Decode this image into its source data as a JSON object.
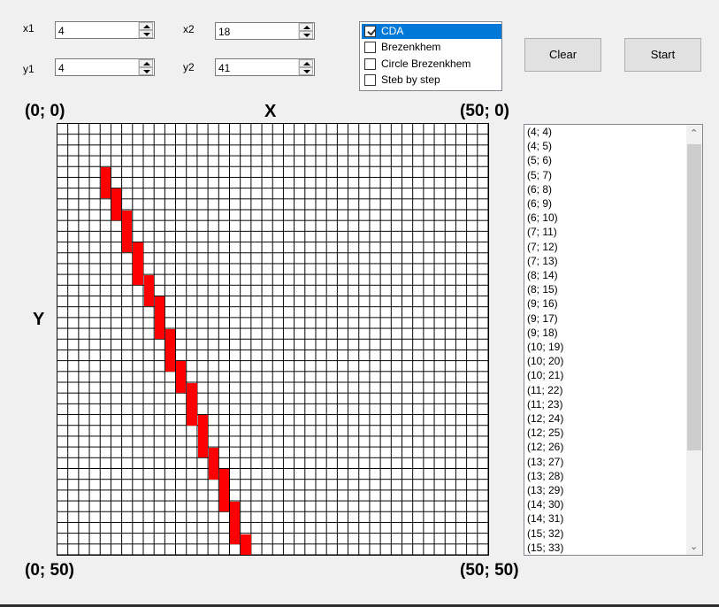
{
  "inputs": {
    "x1": {
      "label": "x1",
      "value": "4"
    },
    "y1": {
      "label": "y1",
      "value": "4"
    },
    "x2": {
      "label": "x2",
      "value": "18"
    },
    "y2": {
      "label": "y2",
      "value": "41"
    }
  },
  "algorithms": [
    {
      "label": "CDA",
      "checked": true,
      "selected": true
    },
    {
      "label": "Brezenkhem",
      "checked": false,
      "selected": false
    },
    {
      "label": "Circle Brezenkhem",
      "checked": false,
      "selected": false
    },
    {
      "label": "Steb by step",
      "checked": false,
      "selected": false
    }
  ],
  "buttons": {
    "clear": "Clear",
    "start": "Start"
  },
  "canvas": {
    "corner_top_left": "(0; 0)",
    "corner_top_right": "(50; 0)",
    "corner_bottom_left": "(0; 50)",
    "corner_bottom_right": "(50; 50)",
    "axis_x": "X",
    "axis_y": "Y",
    "grid_size": 40,
    "pixel_color": "#ff0000"
  },
  "points": [
    "(4; 4)",
    "(4; 5)",
    "(5; 6)",
    "(5; 7)",
    "(6; 8)",
    "(6; 9)",
    "(6; 10)",
    "(7; 11)",
    "(7; 12)",
    "(7; 13)",
    "(8; 14)",
    "(8; 15)",
    "(9; 16)",
    "(9; 17)",
    "(9; 18)",
    "(10; 19)",
    "(10; 20)",
    "(10; 21)",
    "(11; 22)",
    "(11; 23)",
    "(12; 24)",
    "(12; 25)",
    "(12; 26)",
    "(13; 27)",
    "(13; 28)",
    "(13; 29)",
    "(14; 30)",
    "(14; 31)",
    "(15; 32)",
    "(15; 33)"
  ],
  "drawn_pixels": [
    [
      4,
      4
    ],
    [
      4,
      5
    ],
    [
      5,
      6
    ],
    [
      5,
      7
    ],
    [
      6,
      8
    ],
    [
      6,
      9
    ],
    [
      6,
      10
    ],
    [
      7,
      11
    ],
    [
      7,
      12
    ],
    [
      7,
      13
    ],
    [
      8,
      14
    ],
    [
      8,
      15
    ],
    [
      9,
      16
    ],
    [
      9,
      17
    ],
    [
      9,
      18
    ],
    [
      10,
      19
    ],
    [
      10,
      20
    ],
    [
      10,
      21
    ],
    [
      11,
      22
    ],
    [
      11,
      23
    ],
    [
      12,
      24
    ],
    [
      12,
      25
    ],
    [
      12,
      26
    ],
    [
      13,
      27
    ],
    [
      13,
      28
    ],
    [
      13,
      29
    ],
    [
      14,
      30
    ],
    [
      14,
      31
    ],
    [
      15,
      32
    ],
    [
      15,
      33
    ],
    [
      15,
      34
    ],
    [
      16,
      35
    ],
    [
      16,
      36
    ],
    [
      16,
      37
    ],
    [
      17,
      38
    ],
    [
      17,
      39
    ]
  ]
}
